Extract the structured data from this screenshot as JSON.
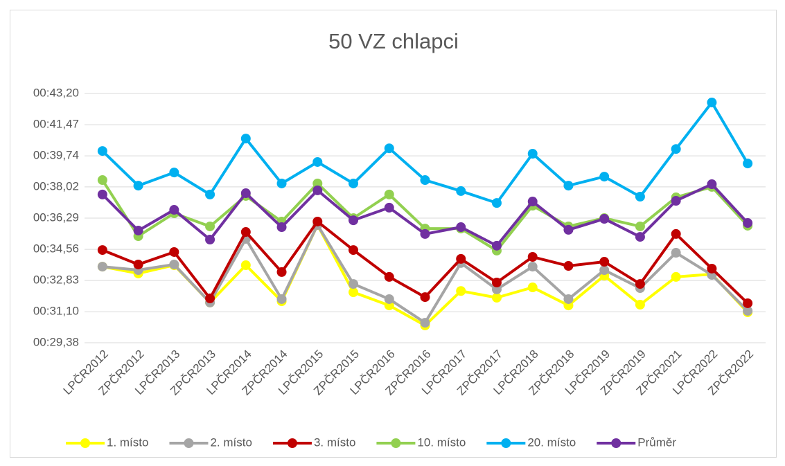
{
  "chart_data": {
    "type": "line",
    "title": "50 VZ chlapci",
    "categories": [
      "LPČR2012",
      "ZPČR2012",
      "LPČR2013",
      "ZPČR2013",
      "LPČR2014",
      "ZPČR2014",
      "LPČR2015",
      "ZPČR2015",
      "LPČR2016",
      "ZPČR2016",
      "LPČR2017",
      "ZPČR2017",
      "LPČR2018",
      "ZPČR2018",
      "LPČR2019",
      "ZPČR2019",
      "ZPČR2021",
      "LPČR2022",
      "ZPČR2022"
    ],
    "series": [
      {
        "name": "1. místo",
        "color": "#ffff00",
        "values": [
          33.6,
          33.22,
          33.68,
          31.61,
          33.68,
          31.68,
          35.91,
          32.18,
          31.45,
          30.34,
          32.25,
          31.88,
          32.45,
          31.45,
          33.1,
          31.49,
          33.03,
          33.18,
          31.07
        ]
      },
      {
        "name": "2. místo",
        "color": "#a5a5a5",
        "values": [
          33.6,
          33.41,
          33.72,
          31.61,
          35.14,
          31.8,
          35.91,
          32.64,
          31.8,
          30.49,
          33.8,
          32.34,
          33.6,
          31.8,
          33.41,
          32.41,
          34.37,
          33.14,
          31.15
        ]
      },
      {
        "name": "3. místo",
        "color": "#c00000",
        "values": [
          34.52,
          33.72,
          34.41,
          31.84,
          35.52,
          33.3,
          36.1,
          34.52,
          33.03,
          31.91,
          34.03,
          32.72,
          34.14,
          33.64,
          33.87,
          32.64,
          35.41,
          33.49,
          31.57
        ]
      },
      {
        "name": "10. místo",
        "color": "#92d050",
        "values": [
          38.4,
          35.29,
          36.56,
          35.83,
          37.52,
          36.1,
          38.21,
          36.29,
          37.6,
          35.71,
          35.71,
          34.49,
          36.98,
          35.83,
          36.29,
          35.83,
          37.44,
          38.02,
          35.87
        ]
      },
      {
        "name": "20. místo",
        "color": "#00b0f0",
        "values": [
          40.01,
          38.09,
          38.82,
          37.6,
          40.7,
          38.21,
          39.4,
          38.21,
          40.16,
          38.4,
          37.79,
          37.13,
          39.86,
          38.09,
          38.59,
          37.48,
          40.12,
          42.7,
          39.32
        ]
      },
      {
        "name": "Průměr",
        "color": "#7030a0",
        "values": [
          37.6,
          35.6,
          36.75,
          35.1,
          37.67,
          35.79,
          37.83,
          36.17,
          36.87,
          35.41,
          35.79,
          34.76,
          37.21,
          35.64,
          36.25,
          35.25,
          37.25,
          38.17,
          36.02
        ]
      }
    ],
    "ylim": [
      29.38,
      43.2
    ],
    "yticks": [
      {
        "value": 29.38,
        "label": "00:29,38"
      },
      {
        "value": 31.1,
        "label": "00:31,10"
      },
      {
        "value": 32.83,
        "label": "00:32,83"
      },
      {
        "value": 34.56,
        "label": "00:34,56"
      },
      {
        "value": 36.29,
        "label": "00:36,29"
      },
      {
        "value": 38.02,
        "label": "00:38,02"
      },
      {
        "value": 39.74,
        "label": "00:39,74"
      },
      {
        "value": 41.47,
        "label": "00:41,47"
      },
      {
        "value": 43.2,
        "label": "00:43,20"
      }
    ],
    "grid": true,
    "legend": "bottom"
  }
}
